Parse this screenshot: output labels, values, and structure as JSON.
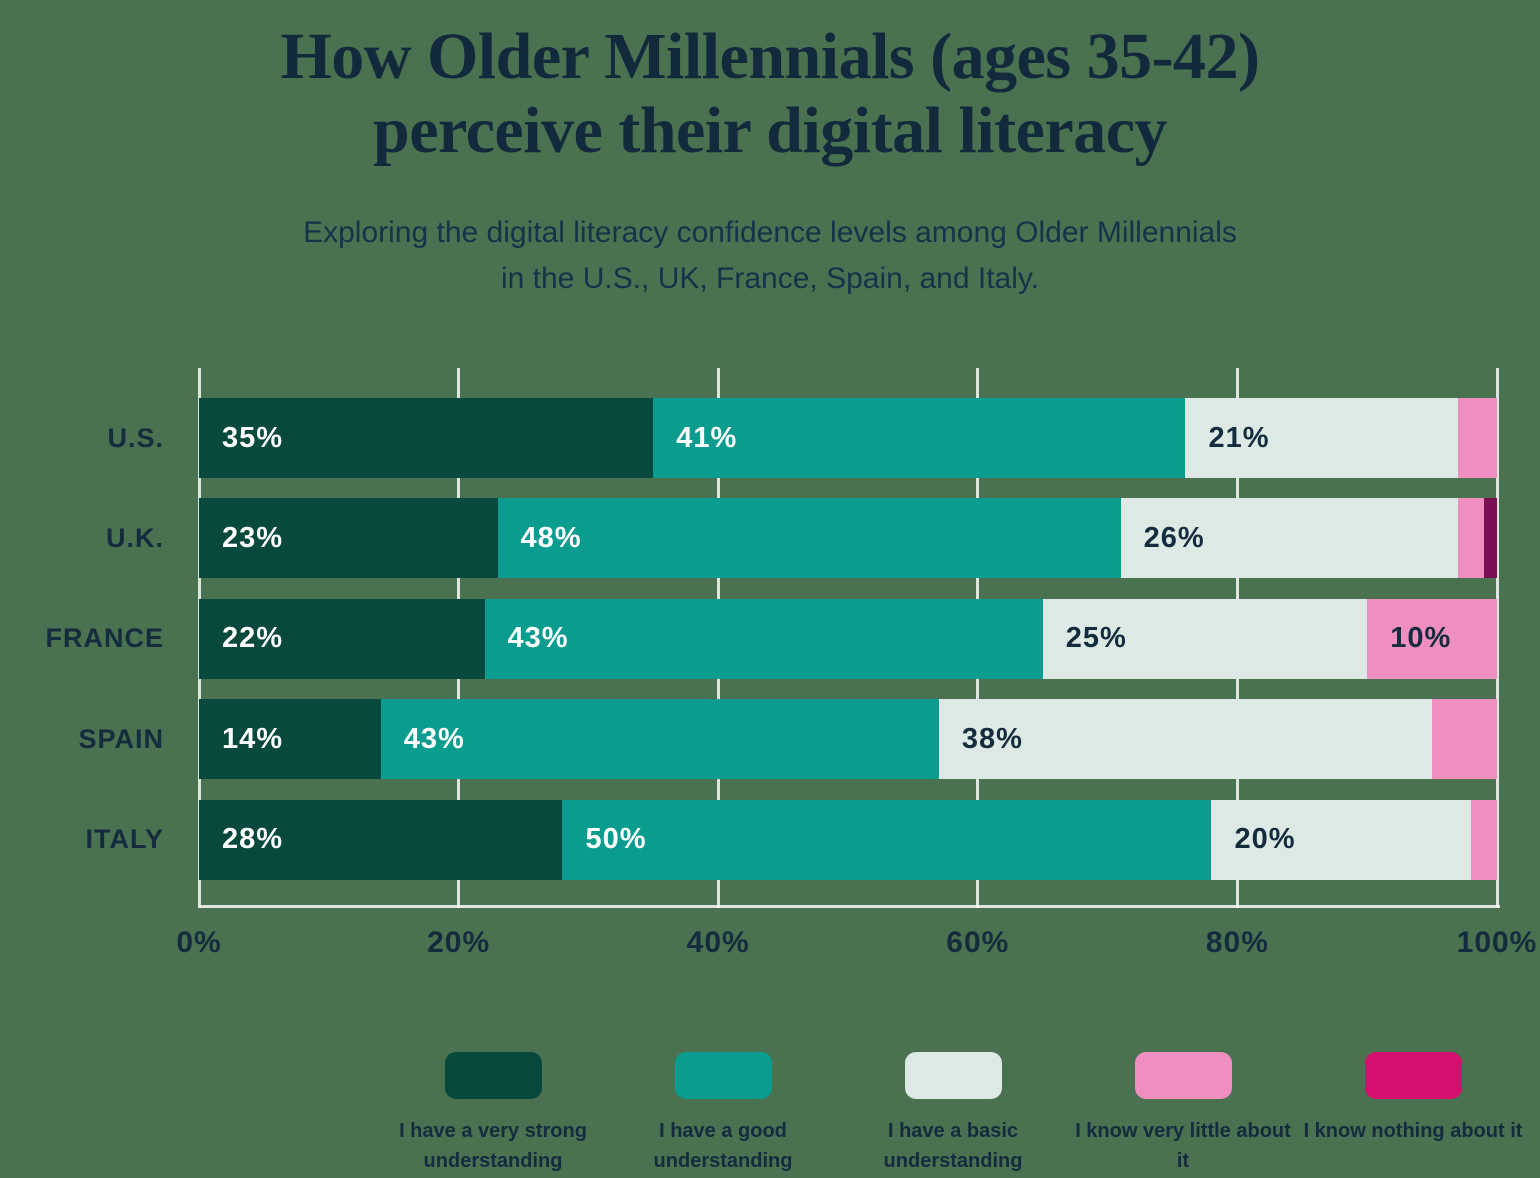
{
  "header": {
    "title_line1": "How Older Millennials (ages 35-42)",
    "title_line2": "perceive their digital literacy",
    "subtitle_line1": "Exploring the digital literacy confidence levels among Older Millennials",
    "subtitle_line2": "in the U.S., UK, France, Spain, and Italy."
  },
  "colors": {
    "background": "#4a7150",
    "text": "#142c3e",
    "gridline": "rgba(255,255,255,0.82)"
  },
  "chart_data": {
    "type": "bar",
    "orientation": "horizontal",
    "stacked": true,
    "title": "How Older Millennials (ages 35-42) perceive their digital literacy",
    "subtitle": "Exploring the digital literacy confidence levels among Older Millennials in the U.S., UK, France, Spain, and Italy.",
    "categories": [
      "U.S.",
      "U.K.",
      "FRANCE",
      "SPAIN",
      "ITALY"
    ],
    "series": [
      {
        "name": "I have a very strong understanding",
        "color": "#07493c",
        "label_color": "#ffffff",
        "values": [
          35,
          23,
          22,
          14,
          28
        ]
      },
      {
        "name": "I have a good understanding",
        "color": "#0a9c8e",
        "label_color": "#ffffff",
        "values": [
          41,
          48,
          43,
          43,
          50
        ]
      },
      {
        "name": "I have a basic understanding",
        "color": "#dde9e5",
        "label_color": "#142c3e",
        "values": [
          21,
          26,
          25,
          38,
          20
        ]
      },
      {
        "name": "I know very little about it",
        "color": "#ee8fc0",
        "label_color": "#142c3e",
        "values": [
          3,
          2,
          10,
          5,
          2
        ]
      },
      {
        "name": "I know nothing about it",
        "color": "#7a1053",
        "legend_color": "#d5106e",
        "label_color": "#ffffff",
        "values": [
          0,
          1,
          0,
          0,
          0
        ]
      }
    ],
    "value_suffix": "%",
    "label_min_value": 10,
    "x_axis": {
      "min": 0,
      "max": 100,
      "tick_values": [
        0,
        20,
        40,
        60,
        80,
        100
      ],
      "tick_labels": [
        "0%",
        "20%",
        "40%",
        "60%",
        "80%",
        "100%"
      ]
    },
    "grid": "vertical",
    "legend_position": "bottom"
  }
}
